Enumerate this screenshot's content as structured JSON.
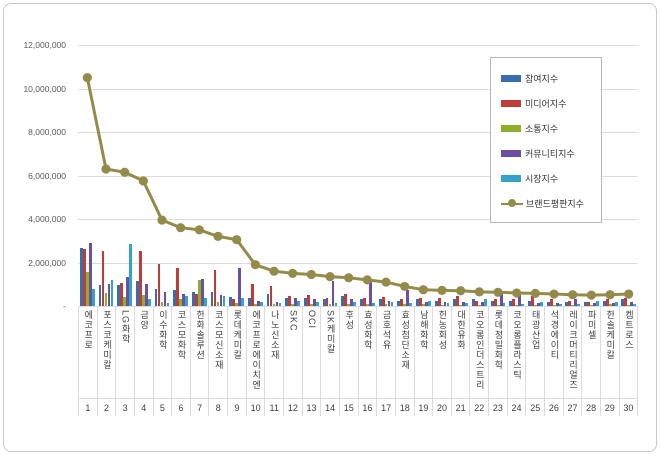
{
  "chart_data": {
    "type": "bar+line",
    "title": "",
    "xlabel": "",
    "ylabel": "",
    "ylim": [
      0,
      12000000
    ],
    "grid": true,
    "legend_position": "right-top",
    "y_ticks": [
      {
        "label": "12,000,000",
        "value": 12000000
      },
      {
        "label": "10,000,000",
        "value": 10000000
      },
      {
        "label": "8,000,000",
        "value": 8000000
      },
      {
        "label": "6,000,000",
        "value": 6000000
      },
      {
        "label": "4,000,000",
        "value": 4000000
      },
      {
        "label": "2,000,000",
        "value": 2000000
      },
      {
        "label": "-",
        "value": 0
      }
    ],
    "categories": [
      "에코프로",
      "포스코케미칼",
      "LG화학",
      "금양",
      "이수화학",
      "코스모화학",
      "한화솔루션",
      "코스모신소재",
      "롯데케미칼",
      "에코프로에이치엔",
      "나노신소재",
      "SKC",
      "OCI",
      "SK케미칼",
      "후성",
      "효성화학",
      "금호석유",
      "효성첨단소재",
      "남해화학",
      "한농화성",
      "대한유화",
      "코오롱인더스트리",
      "롯데정밀화학",
      "코오롱플라스틱",
      "태광산업",
      "석경에이티",
      "레이크머티리얼즈",
      "파미셀",
      "한솔케미칼",
      "켐트로스"
    ],
    "ranks": [
      "1",
      "2",
      "3",
      "4",
      "5",
      "6",
      "7",
      "8",
      "9",
      "10",
      "11",
      "12",
      "13",
      "14",
      "15",
      "16",
      "17",
      "18",
      "19",
      "20",
      "21",
      "22",
      "23",
      "24",
      "25",
      "26",
      "27",
      "28",
      "29",
      "30"
    ],
    "series": [
      {
        "name": "참여지수",
        "type": "bar",
        "color": "#3a6db0",
        "values": [
          2650000,
          950000,
          950000,
          1150000,
          800000,
          750000,
          650000,
          650000,
          400000,
          350000,
          550000,
          350000,
          350000,
          300000,
          450000,
          300000,
          300000,
          250000,
          300000,
          250000,
          300000,
          300000,
          250000,
          250000,
          250000,
          200000,
          200000,
          200000,
          250000,
          300000
        ]
      },
      {
        "name": "미디어지수",
        "type": "bar",
        "color": "#bf3d39",
        "values": [
          2600000,
          2550000,
          1050000,
          2550000,
          1950000,
          1750000,
          550000,
          1650000,
          300000,
          1000000,
          900000,
          450000,
          500000,
          350000,
          550000,
          350000,
          400000,
          300000,
          350000,
          350000,
          450000,
          250000,
          300000,
          300000,
          450000,
          300000,
          250000,
          200000,
          300000,
          350000
        ]
      },
      {
        "name": "소통지수",
        "type": "bar",
        "color": "#8fae2e",
        "values": [
          1550000,
          600000,
          400000,
          500000,
          200000,
          300000,
          1200000,
          200000,
          150000,
          100000,
          100000,
          100000,
          100000,
          100000,
          100000,
          100000,
          80000,
          80000,
          80000,
          50000,
          50000,
          50000,
          50000,
          50000,
          50000,
          50000,
          50000,
          50000,
          80000,
          50000
        ]
      },
      {
        "name": "커뮤니티지수",
        "type": "bar",
        "color": "#6b4fa0",
        "values": [
          2900000,
          1000000,
          1350000,
          1000000,
          650000,
          550000,
          1250000,
          500000,
          1750000,
          250000,
          200000,
          350000,
          300000,
          1150000,
          300000,
          1100000,
          250000,
          750000,
          200000,
          200000,
          200000,
          200000,
          600000,
          550000,
          150000,
          150000,
          300000,
          150000,
          150000,
          200000
        ]
      },
      {
        "name": "시장지수",
        "type": "bar",
        "color": "#35a2c9",
        "values": [
          800000,
          1200000,
          2850000,
          300000,
          150000,
          450000,
          350000,
          450000,
          350000,
          200000,
          150000,
          250000,
          200000,
          150000,
          200000,
          150000,
          200000,
          150000,
          250000,
          150000,
          150000,
          300000,
          150000,
          100000,
          200000,
          100000,
          100000,
          250000,
          200000,
          100000
        ]
      },
      {
        "name": "브랜드평판지수",
        "type": "line",
        "color": "#948b4a",
        "values": [
          10500000,
          6300000,
          6150000,
          5750000,
          3950000,
          3600000,
          3500000,
          3200000,
          3050000,
          1900000,
          1600000,
          1500000,
          1450000,
          1350000,
          1300000,
          1200000,
          1100000,
          900000,
          750000,
          720000,
          700000,
          650000,
          630000,
          600000,
          580000,
          550000,
          520000,
          500000,
          520000,
          550000
        ]
      }
    ]
  }
}
